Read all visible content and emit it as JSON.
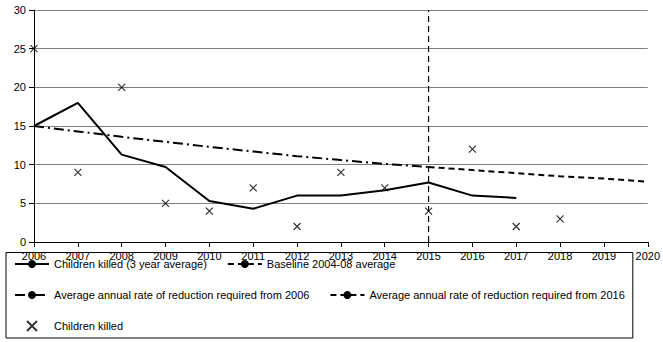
{
  "chart_data": {
    "type": "line",
    "xlim": [
      2006,
      2020
    ],
    "xticks": [
      2006,
      2007,
      2008,
      2009,
      2010,
      2011,
      2012,
      2013,
      2014,
      2015,
      2016,
      2017,
      2018,
      2019,
      2020
    ],
    "ylim": [
      0,
      30
    ],
    "yticks": [
      0,
      5,
      10,
      15,
      20,
      25,
      30
    ],
    "grid": true,
    "legend": "bottom",
    "series": [
      {
        "name": "Children killed (3 year average)",
        "type": "line",
        "color": "#000000",
        "line_style": "solid",
        "x": [
          2006,
          2007,
          2008,
          2009,
          2010,
          2011,
          2012,
          2013,
          2014,
          2015,
          2016,
          2017
        ],
        "values": [
          15,
          18,
          11.3,
          9.7,
          5.3,
          4.3,
          6,
          6,
          6.7,
          7.7,
          6,
          5.7
        ]
      },
      {
        "name": "Baseline 2004-08 average",
        "type": "line",
        "color": "#000000",
        "line_style": "dashed",
        "x": [
          2015,
          2015
        ],
        "values": [
          0,
          30
        ]
      },
      {
        "name": "Average annual rate of reduction required from 2006",
        "type": "line",
        "color": "#000000",
        "line_style": "dashdot",
        "x": [
          2006,
          2007,
          2008,
          2009,
          2010,
          2011,
          2012,
          2013,
          2014,
          2015
        ],
        "values": [
          15,
          14.3,
          13.6,
          12.95,
          12.3,
          11.7,
          11.1,
          10.6,
          10.1,
          9.7
        ]
      },
      {
        "name": "Average annual rate of reduction required from 2016",
        "type": "line",
        "color": "#000000",
        "line_style": "dashed",
        "x": [
          2015,
          2016,
          2017,
          2018,
          2019,
          2020
        ],
        "values": [
          9.7,
          9.3,
          8.9,
          8.5,
          8.2,
          7.8
        ]
      },
      {
        "name": "Children killed",
        "type": "scatter",
        "color": "#000000",
        "marker": "x",
        "x": [
          2006,
          2007,
          2008,
          2009,
          2010,
          2011,
          2012,
          2013,
          2014,
          2015,
          2016,
          2017,
          2018
        ],
        "values": [
          25,
          9,
          20,
          5,
          4,
          7,
          2,
          9,
          7,
          4,
          12,
          2,
          3
        ]
      }
    ]
  }
}
